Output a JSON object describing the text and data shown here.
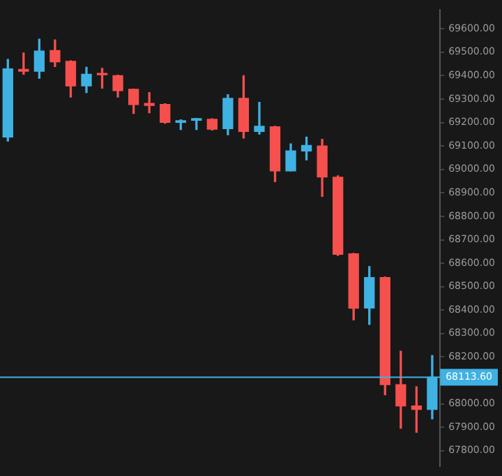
{
  "chart_data": {
    "type": "candlestick",
    "categories": [
      null,
      null,
      null,
      null,
      null,
      null,
      null,
      null,
      null,
      null,
      null,
      null,
      null,
      null,
      null,
      null,
      null,
      null,
      null,
      null,
      null,
      null,
      null,
      null,
      null,
      null,
      null,
      null
    ],
    "ohlc": [
      [
        69138,
        69469,
        69121,
        69429
      ],
      [
        69427,
        69497,
        69406,
        69419
      ],
      [
        69419,
        69556,
        69389,
        69505
      ],
      [
        69507,
        69553,
        69439,
        69459
      ],
      [
        69461,
        69463,
        69309,
        69356
      ],
      [
        69356,
        69436,
        69328,
        69406
      ],
      [
        69408,
        69431,
        69347,
        69404
      ],
      [
        69400,
        69402,
        69309,
        69336
      ],
      [
        69342,
        69343,
        69239,
        69277
      ],
      [
        69282,
        69328,
        69242,
        69273
      ],
      [
        69277,
        69280,
        69197,
        69201
      ],
      [
        69201,
        69212,
        69170,
        69208
      ],
      [
        69210,
        69218,
        69170,
        69217
      ],
      [
        69214,
        69216,
        69168,
        69172
      ],
      [
        69174,
        69319,
        69148,
        69303
      ],
      [
        69303,
        69400,
        69134,
        69162
      ],
      [
        69162,
        69286,
        69151,
        69184
      ],
      [
        69182,
        69184,
        68948,
        68994
      ],
      [
        68994,
        69109,
        68994,
        69079
      ],
      [
        69079,
        69138,
        69041,
        69102
      ],
      [
        69100,
        69128,
        68885,
        68968
      ],
      [
        68967,
        68973,
        68633,
        68638
      ],
      [
        68640,
        68642,
        68358,
        68408
      ],
      [
        68409,
        68586,
        68339,
        68539
      ],
      [
        68539,
        68541,
        68039,
        68082
      ],
      [
        68082,
        68225,
        67896,
        67991
      ],
      [
        67991,
        68073,
        67879,
        67976
      ],
      [
        67976,
        68206,
        67936,
        68113.6
      ]
    ],
    "colors": [
      "#3fb1e3",
      "#f5504e",
      "#3fb1e3",
      "#f5504e",
      "#f5504e",
      "#3fb1e3",
      "#f5504e",
      "#f5504e",
      "#f5504e",
      "#f5504e",
      "#f5504e",
      "#3fb1e3",
      "#3fb1e3",
      "#f5504e",
      "#3fb1e3",
      "#f5504e",
      "#3fb1e3",
      "#f5504e",
      "#3fb1e3",
      "#3fb1e3",
      "#f5504e",
      "#f5504e",
      "#f5504e",
      "#3fb1e3",
      "#f5504e",
      "#f5504e",
      "#f5504e",
      "#3fb1e3"
    ],
    "ylim": [
      67735,
      69680
    ],
    "yticks": [
      {
        "value": 67800,
        "label": "67800.00"
      },
      {
        "value": 67900,
        "label": "67900.00"
      },
      {
        "value": 68000,
        "label": "68000.00"
      },
      {
        "value": 68200,
        "label": "68200.00"
      },
      {
        "value": 68300,
        "label": "68300.00"
      },
      {
        "value": 68400,
        "label": "68400.00"
      },
      {
        "value": 68500,
        "label": "68500.00"
      },
      {
        "value": 68600,
        "label": "68600.00"
      },
      {
        "value": 68700,
        "label": "68700.00"
      },
      {
        "value": 68800,
        "label": "68800.00"
      },
      {
        "value": 68900,
        "label": "68900.00"
      },
      {
        "value": 69000,
        "label": "69000.00"
      },
      {
        "value": 69100,
        "label": "69100.00"
      },
      {
        "value": 69200,
        "label": "69200.00"
      },
      {
        "value": 69300,
        "label": "69300.00"
      },
      {
        "value": 69400,
        "label": "69400.00"
      },
      {
        "value": 69500,
        "label": "69500.00"
      },
      {
        "value": 69600,
        "label": "69600.00"
      }
    ],
    "ref_lines": [
      {
        "axis": "y",
        "value": 68113.6,
        "label": "68113.60",
        "color": "#3fb1e3"
      }
    ],
    "tick_labels": "y",
    "legend": false
  }
}
